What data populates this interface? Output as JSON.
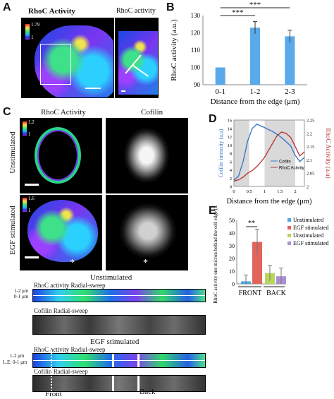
{
  "panels": {
    "A": {
      "letter": "A",
      "title_left": "RhoC Activity",
      "title_right": "RhoC activity",
      "cbar_top": "1.79",
      "cbar_bottom": "1"
    },
    "B": {
      "letter": "B",
      "sig1": "***",
      "sig2": "***"
    },
    "C": {
      "letter": "C",
      "col1_title": "RhoC Activity",
      "col2_title": "Cofilin",
      "row1_label": "Unstimulated",
      "row2_label": "EGF stimulated",
      "cbar1_top": "1.2",
      "cbar1_bottom": "1",
      "cbar2_top": "1.6",
      "cbar2_bottom": "1",
      "asterisk": "*",
      "unstim_heading": "Unstimulated",
      "rhoc_sweep_label": "RhoC activity  Radial-sweep",
      "cofilin_sweep_label": "Cofilin  Radial-sweep",
      "egf_heading": "EGF stimulated",
      "row_12": "1-2 μm",
      "row_01": "0-1 μm",
      "row_le": "L.E: 0-1 μm",
      "front_label": "Front",
      "back_label": "Back"
    },
    "D": {
      "letter": "D"
    },
    "E": {
      "letter": "E",
      "sig": "**"
    }
  },
  "colors": {
    "bar_B": "#5aa9ea",
    "cofilin_line": "#3b78c8",
    "rhoc_line": "#b83a3a",
    "unstim_E": "#4fa8e0",
    "egf_E": "#e2645a",
    "unstim2_E": "#b9d65a",
    "egf2_E": "#a98fd6"
  },
  "chart_data": [
    {
      "id": "B",
      "type": "bar",
      "categories": [
        "0-1",
        "1-2",
        "2-3"
      ],
      "values": [
        100,
        123,
        118
      ],
      "errors": [
        0,
        3.5,
        3.5
      ],
      "ylabel": "RhoC activity (a.u.)",
      "xlabel": "Distance from the edge (μm)",
      "ylim": [
        90,
        130
      ],
      "yticks": [
        "90",
        "100",
        "110",
        "120",
        "130"
      ],
      "grid": false
    },
    {
      "id": "D",
      "type": "line",
      "xlabel": "Distance from the edge  (μm)",
      "ylabel_left": "Cofilin intensity (a.u)",
      "ylabel_right": "RhoC Activity (a.u)",
      "xlim": [
        0,
        2.3
      ],
      "xticks": [
        "0",
        "0.5",
        "1",
        "1.5",
        "2"
      ],
      "ylim_left": [
        0,
        16
      ],
      "yticks_left": [
        "0",
        "2",
        "4",
        "6",
        "8",
        "10",
        "12",
        "14",
        "16"
      ],
      "ylim_right": [
        2.0,
        2.25
      ],
      "yticks_right": [
        "2",
        "2.05",
        "2.1",
        "2.15",
        "2.2",
        "2.25"
      ],
      "shaded": [
        [
          0,
          0.5
        ],
        [
          1,
          2
        ]
      ],
      "legend": "center-right",
      "series": [
        {
          "name": "Cofilin",
          "axis": "left",
          "x": [
            0.0,
            0.15,
            0.3,
            0.45,
            0.6,
            0.75,
            0.9,
            1.0,
            1.1,
            1.25,
            1.4,
            1.55,
            1.7,
            1.85,
            2.0,
            2.15,
            2.3
          ],
          "y": [
            1.5,
            2.5,
            6,
            11,
            14,
            15,
            14.5,
            14.2,
            13.8,
            13.3,
            12.6,
            11.8,
            10.8,
            9.8,
            7.5,
            6,
            7
          ]
        },
        {
          "name": "RhoC Activity",
          "axis": "right",
          "x": [
            0.0,
            0.15,
            0.3,
            0.45,
            0.6,
            0.75,
            0.9,
            1.0,
            1.1,
            1.25,
            1.4,
            1.55,
            1.7,
            1.85,
            2.0,
            2.15,
            2.3
          ],
          "y": [
            2.02,
            2.025,
            2.035,
            2.05,
            2.06,
            2.075,
            2.095,
            2.11,
            2.13,
            2.16,
            2.19,
            2.205,
            2.2,
            2.185,
            2.15,
            2.115,
            2.13
          ]
        }
      ]
    },
    {
      "id": "E",
      "type": "bar",
      "categories": [
        "FRONT",
        "BACK"
      ],
      "ylabel": "RhoC activity one micron behind the cell edge (a.u)",
      "ylim": [
        0,
        50
      ],
      "yticks": [
        "0",
        "10",
        "20",
        "30",
        "40",
        "50"
      ],
      "legend": "top-right",
      "series": [
        {
          "name": "Unstimulated",
          "group": "FRONT",
          "value": 2,
          "error": 5
        },
        {
          "name": "EGF stimulated",
          "group": "FRONT",
          "value": 33,
          "error": 10
        },
        {
          "name": "Unstimulated",
          "group": "BACK",
          "value": 8.5,
          "error": 6
        },
        {
          "name": "EGF stimulated",
          "group": "BACK",
          "value": 6,
          "error": 6.5
        }
      ]
    }
  ]
}
